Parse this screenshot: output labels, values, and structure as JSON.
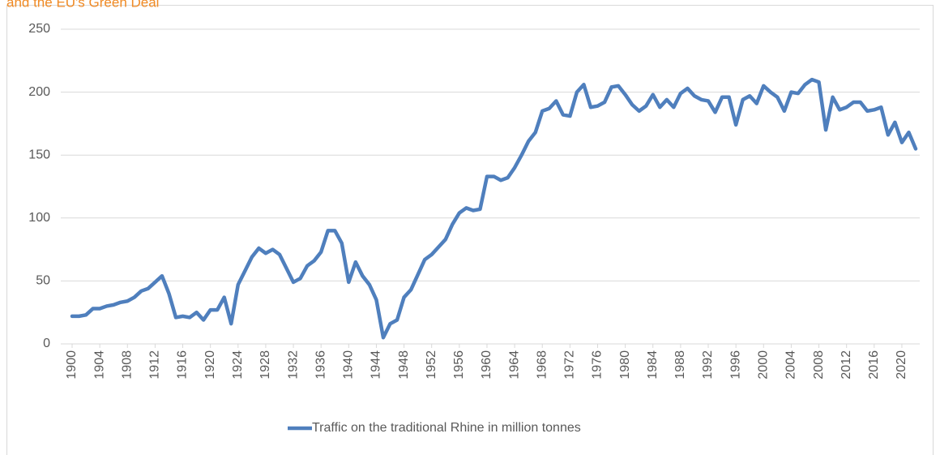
{
  "chart_data": {
    "type": "line",
    "title": "and the EU's Green Deal",
    "x": [
      1900,
      1901,
      1902,
      1903,
      1904,
      1905,
      1906,
      1907,
      1908,
      1909,
      1910,
      1911,
      1912,
      1913,
      1914,
      1915,
      1916,
      1917,
      1918,
      1919,
      1920,
      1921,
      1922,
      1923,
      1924,
      1925,
      1926,
      1927,
      1928,
      1929,
      1930,
      1931,
      1932,
      1933,
      1934,
      1935,
      1936,
      1937,
      1938,
      1939,
      1940,
      1941,
      1942,
      1943,
      1944,
      1945,
      1946,
      1947,
      1948,
      1949,
      1950,
      1951,
      1952,
      1953,
      1954,
      1955,
      1956,
      1957,
      1958,
      1959,
      1960,
      1961,
      1962,
      1963,
      1964,
      1965,
      1966,
      1967,
      1968,
      1969,
      1970,
      1971,
      1972,
      1973,
      1974,
      1975,
      1976,
      1977,
      1978,
      1979,
      1980,
      1981,
      1982,
      1983,
      1984,
      1985,
      1986,
      1987,
      1988,
      1989,
      1990,
      1991,
      1992,
      1993,
      1994,
      1995,
      1996,
      1997,
      1998,
      1999,
      2000,
      2001,
      2002,
      2003,
      2004,
      2005,
      2006,
      2007,
      2008,
      2009,
      2010,
      2011,
      2012,
      2013,
      2014,
      2015,
      2016,
      2017,
      2018,
      2019,
      2020,
      2021,
      2022
    ],
    "series": [
      {
        "name": "Traffic on the traditional Rhine in million tonnes",
        "color": "#4f7fbd",
        "values": [
          22,
          22,
          23,
          28,
          28,
          30,
          31,
          33,
          34,
          37,
          42,
          44,
          49,
          54,
          40,
          21,
          22,
          21,
          25,
          19,
          27,
          27,
          37,
          16,
          47,
          58,
          69,
          76,
          72,
          75,
          71,
          60,
          49,
          52,
          62,
          66,
          73,
          90,
          90,
          80,
          49,
          65,
          54,
          47,
          35,
          5,
          16,
          19,
          37,
          43,
          55,
          67,
          71,
          77,
          83,
          95,
          104,
          108,
          106,
          107,
          133,
          133,
          130,
          132,
          140,
          150,
          161,
          168,
          185,
          187,
          193,
          182,
          181,
          200,
          206,
          188,
          189,
          192,
          204,
          205,
          198,
          190,
          185,
          189,
          198,
          188,
          194,
          188,
          199,
          203,
          197,
          194,
          193,
          184,
          196,
          196,
          174,
          194,
          197,
          191,
          205,
          200,
          196,
          185,
          200,
          199,
          206,
          210,
          208,
          170,
          196,
          186,
          188,
          192,
          192,
          185,
          186,
          188,
          166,
          176,
          160,
          168,
          155
        ]
      }
    ],
    "xlim": [
      1900,
      2022
    ],
    "xticks": [
      1900,
      1904,
      1908,
      1912,
      1916,
      1920,
      1924,
      1928,
      1932,
      1936,
      1940,
      1944,
      1948,
      1952,
      1956,
      1960,
      1964,
      1968,
      1972,
      1976,
      1980,
      1984,
      1988,
      1992,
      1996,
      2000,
      2004,
      2008,
      2012,
      2016,
      2020
    ],
    "ylim": [
      0,
      250
    ],
    "yticks": [
      0,
      50,
      100,
      150,
      200,
      250
    ],
    "grid": true,
    "legend": "bottom"
  }
}
